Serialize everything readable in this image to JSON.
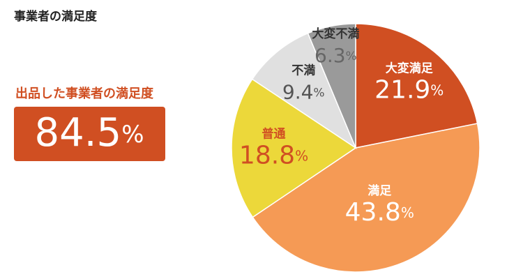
{
  "chart_data": {
    "type": "pie",
    "title": "事業者の満足度",
    "callout_label": "出品した事業者の満足度",
    "callout_value": "84.5%",
    "categories": [
      "大変満足",
      "満足",
      "普通",
      "不満",
      "大変不満"
    ],
    "values": [
      21.9,
      43.8,
      18.8,
      9.4,
      6.3
    ],
    "value_labels": [
      "21.9%",
      "43.8%",
      "18.8%",
      "9.4%",
      "6.3%"
    ],
    "colors": [
      "#d04f22",
      "#f59a55",
      "#ecd83a",
      "#e0e0e0",
      "#9a9a9a"
    ]
  }
}
